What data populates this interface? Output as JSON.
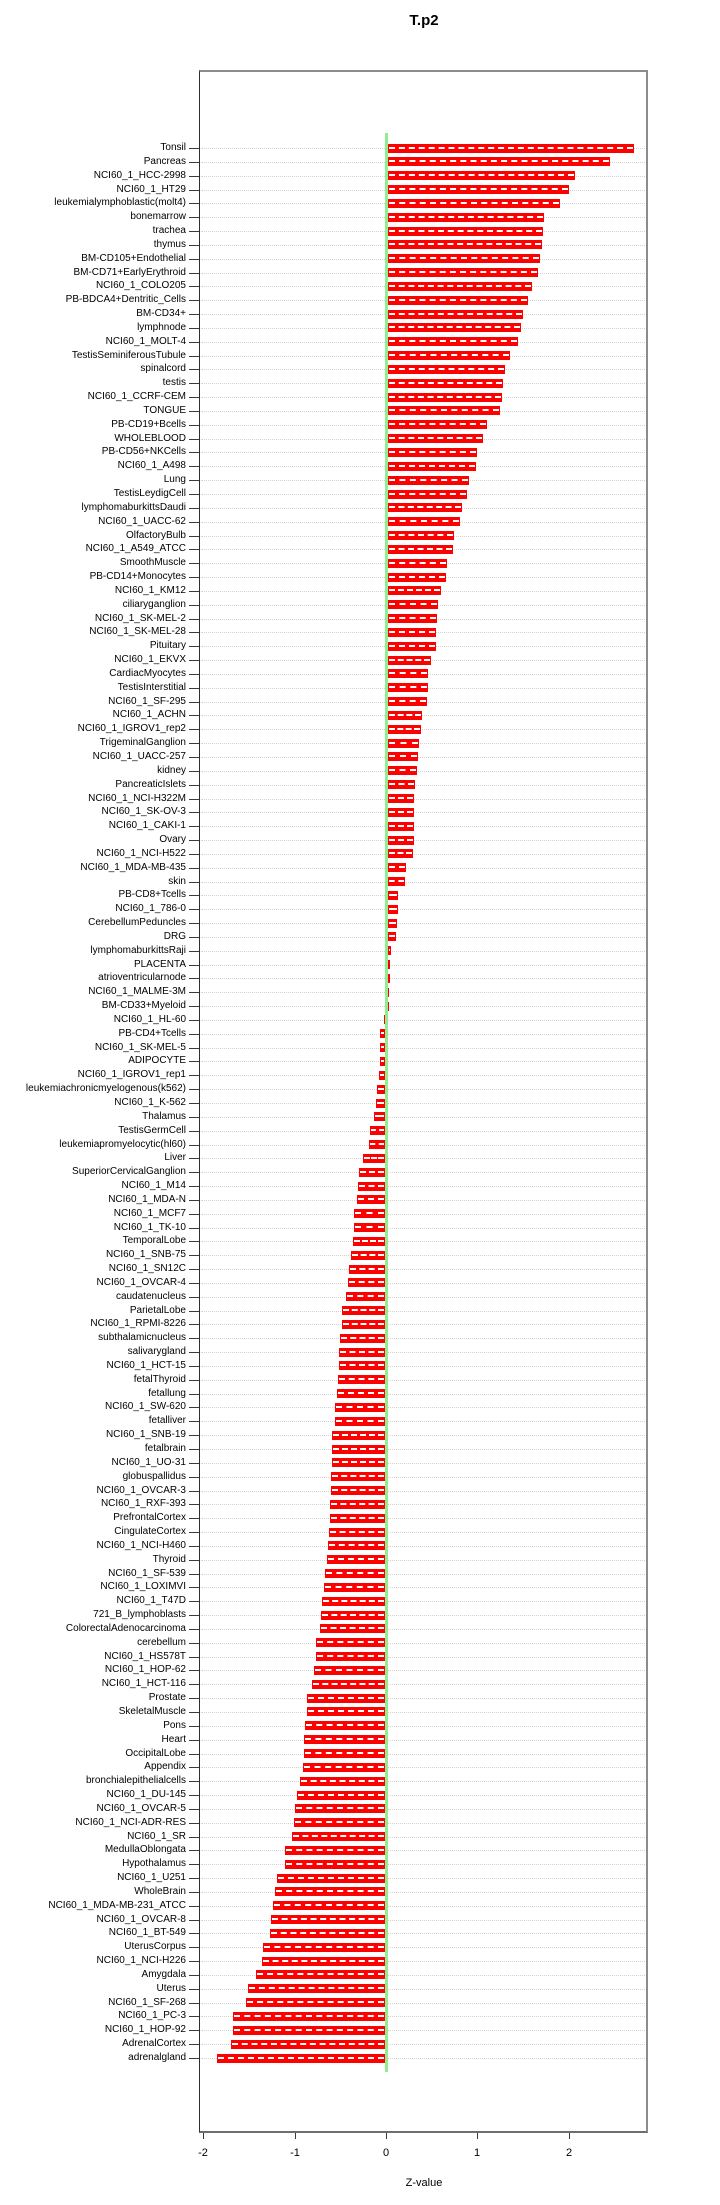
{
  "chart_data": {
    "type": "bar",
    "orientation": "horizontal",
    "title": "T.p2",
    "xlabel": "Z-value",
    "x_ticks": [
      -2,
      -1,
      0,
      1,
      2
    ],
    "xlim": [
      -2.04,
      2.87
    ],
    "grid": true,
    "legend": "none",
    "colors": {
      "bar": "#ff0000",
      "bar_dash": "#ffffff",
      "zero_line": "#90ee90",
      "grid": "#d2d2d2",
      "axis": "#3a3a3a"
    },
    "categories": [
      "Tonsil",
      "Pancreas",
      "NCI60_1_HCC-2998",
      "NCI60_1_HT29",
      "leukemialymphoblastic(molt4)",
      "bonemarrow",
      "trachea",
      "thymus",
      "BM-CD105+Endothelial",
      "BM-CD71+EarlyErythroid",
      "NCI60_1_COLO205",
      "PB-BDCA4+Dentritic_Cells",
      "BM-CD34+",
      "lymphnode",
      "NCI60_1_MOLT-4",
      "TestisSeminiferousTubule",
      "spinalcord",
      "testis",
      "NCI60_1_CCRF-CEM",
      "TONGUE",
      "PB-CD19+Bcells",
      "WHOLEBLOOD",
      "PB-CD56+NKCells",
      "NCI60_1_A498",
      "Lung",
      "TestisLeydigCell",
      "lymphomaburkittsDaudi",
      "NCI60_1_UACC-62",
      "OlfactoryBulb",
      "NCI60_1_A549_ATCC",
      "SmoothMuscle",
      "PB-CD14+Monocytes",
      "NCI60_1_KM12",
      "ciliaryganglion",
      "NCI60_1_SK-MEL-2",
      "NCI60_1_SK-MEL-28",
      "Pituitary",
      "NCI60_1_EKVX",
      "CardiacMyocytes",
      "TestisInterstitial",
      "NCI60_1_SF-295",
      "NCI60_1_ACHN",
      "NCI60_1_IGROV1_rep2",
      "TrigeminalGanglion",
      "NCI60_1_UACC-257",
      "kidney",
      "PancreaticIslets",
      "NCI60_1_NCI-H322M",
      "NCI60_1_SK-OV-3",
      "NCI60_1_CAKI-1",
      "Ovary",
      "NCI60_1_NCI-H522",
      "NCI60_1_MDA-MB-435",
      "skin",
      "PB-CD8+Tcells",
      "NCI60_1_786-0",
      "CerebellumPeduncles",
      "DRG",
      "lymphomaburkittsRaji",
      "PLACENTA",
      "atrioventricularnode",
      "NCI60_1_MALME-3M",
      "BM-CD33+Myeloid",
      "NCI60_1_HL-60",
      "PB-CD4+Tcells",
      "NCI60_1_SK-MEL-5",
      "ADIPOCYTE",
      "NCI60_1_IGROV1_rep1",
      "leukemiachronicmyelogenous(k562)",
      "NCI60_1_K-562",
      "Thalamus",
      "TestisGermCell",
      "leukemiapromyelocytic(hl60)",
      "Liver",
      "SuperiorCervicalGanglion",
      "NCI60_1_M14",
      "NCI60_1_MDA-N",
      "NCI60_1_MCF7",
      "NCI60_1_TK-10",
      "TemporalLobe",
      "NCI60_1_SNB-75",
      "NCI60_1_SN12C",
      "NCI60_1_OVCAR-4",
      "caudatenucleus",
      "ParietalLobe",
      "NCI60_1_RPMI-8226",
      "subthalamicnucleus",
      "salivarygland",
      "NCI60_1_HCT-15",
      "fetalThyroid",
      "fetallung",
      "NCI60_1_SW-620",
      "fetalliver",
      "NCI60_1_SNB-19",
      "fetalbrain",
      "NCI60_1_UO-31",
      "globuspallidus",
      "NCI60_1_OVCAR-3",
      "NCI60_1_RXF-393",
      "PrefrontalCortex",
      "CingulateCortex",
      "NCI60_1_NCI-H460",
      "Thyroid",
      "NCI60_1_SF-539",
      "NCI60_1_LOXIMVI",
      "NCI60_1_T47D",
      "721_B_lymphoblasts",
      "ColorectalAdenocarcinoma",
      "cerebellum",
      "NCI60_1_HS578T",
      "NCI60_1_HOP-62",
      "NCI60_1_HCT-116",
      "Prostate",
      "SkeletalMuscle",
      "Pons",
      "Heart",
      "OccipitalLobe",
      "Appendix",
      "bronchialepithelialcells",
      "NCI60_1_DU-145",
      "NCI60_1_OVCAR-5",
      "NCI60_1_NCI-ADR-RES",
      "NCI60_1_SR",
      "MedullaOblongata",
      "Hypothalamus",
      "NCI60_1_U251",
      "WholeBrain",
      "NCI60_1_MDA-MB-231_ATCC",
      "NCI60_1_OVCAR-8",
      "NCI60_1_BT-549",
      "UterusCorpus",
      "NCI60_1_NCI-H226",
      "Amygdala",
      "Uterus",
      "NCI60_1_SF-268",
      "NCI60_1_PC-3",
      "NCI60_1_HOP-92",
      "AdrenalCortex",
      "adrenalgland"
    ],
    "values": [
      2.69,
      2.43,
      2.05,
      1.98,
      1.88,
      1.71,
      1.7,
      1.69,
      1.67,
      1.64,
      1.58,
      1.53,
      1.48,
      1.46,
      1.42,
      1.34,
      1.28,
      1.26,
      1.25,
      1.23,
      1.08,
      1.04,
      0.97,
      0.96,
      0.89,
      0.87,
      0.81,
      0.79,
      0.72,
      0.71,
      0.65,
      0.64,
      0.58,
      0.55,
      0.54,
      0.53,
      0.53,
      0.47,
      0.44,
      0.44,
      0.43,
      0.37,
      0.36,
      0.34,
      0.33,
      0.32,
      0.3,
      0.29,
      0.28,
      0.28,
      0.28,
      0.27,
      0.2,
      0.19,
      0.11,
      0.11,
      0.1,
      0.09,
      0.03,
      0.02,
      0.02,
      0.01,
      0.01,
      -0.01,
      -0.05,
      -0.06,
      -0.06,
      -0.07,
      -0.09,
      -0.1,
      -0.12,
      -0.16,
      -0.17,
      -0.24,
      -0.29,
      -0.3,
      -0.31,
      -0.34,
      -0.34,
      -0.35,
      -0.37,
      -0.39,
      -0.41,
      -0.43,
      -0.47,
      -0.47,
      -0.49,
      -0.5,
      -0.5,
      -0.52,
      -0.53,
      -0.55,
      -0.55,
      -0.58,
      -0.58,
      -0.58,
      -0.59,
      -0.59,
      -0.6,
      -0.6,
      -0.61,
      -0.62,
      -0.64,
      -0.66,
      -0.67,
      -0.69,
      -0.7,
      -0.71,
      -0.76,
      -0.76,
      -0.78,
      -0.8,
      -0.85,
      -0.85,
      -0.88,
      -0.89,
      -0.89,
      -0.9,
      -0.93,
      -0.96,
      -0.99,
      -1.0,
      -1.02,
      -1.1,
      -1.1,
      -1.18,
      -1.2,
      -1.23,
      -1.25,
      -1.26,
      -1.34,
      -1.35,
      -1.41,
      -1.5,
      -1.52,
      -1.67,
      -1.67,
      -1.69,
      -1.84
    ]
  }
}
